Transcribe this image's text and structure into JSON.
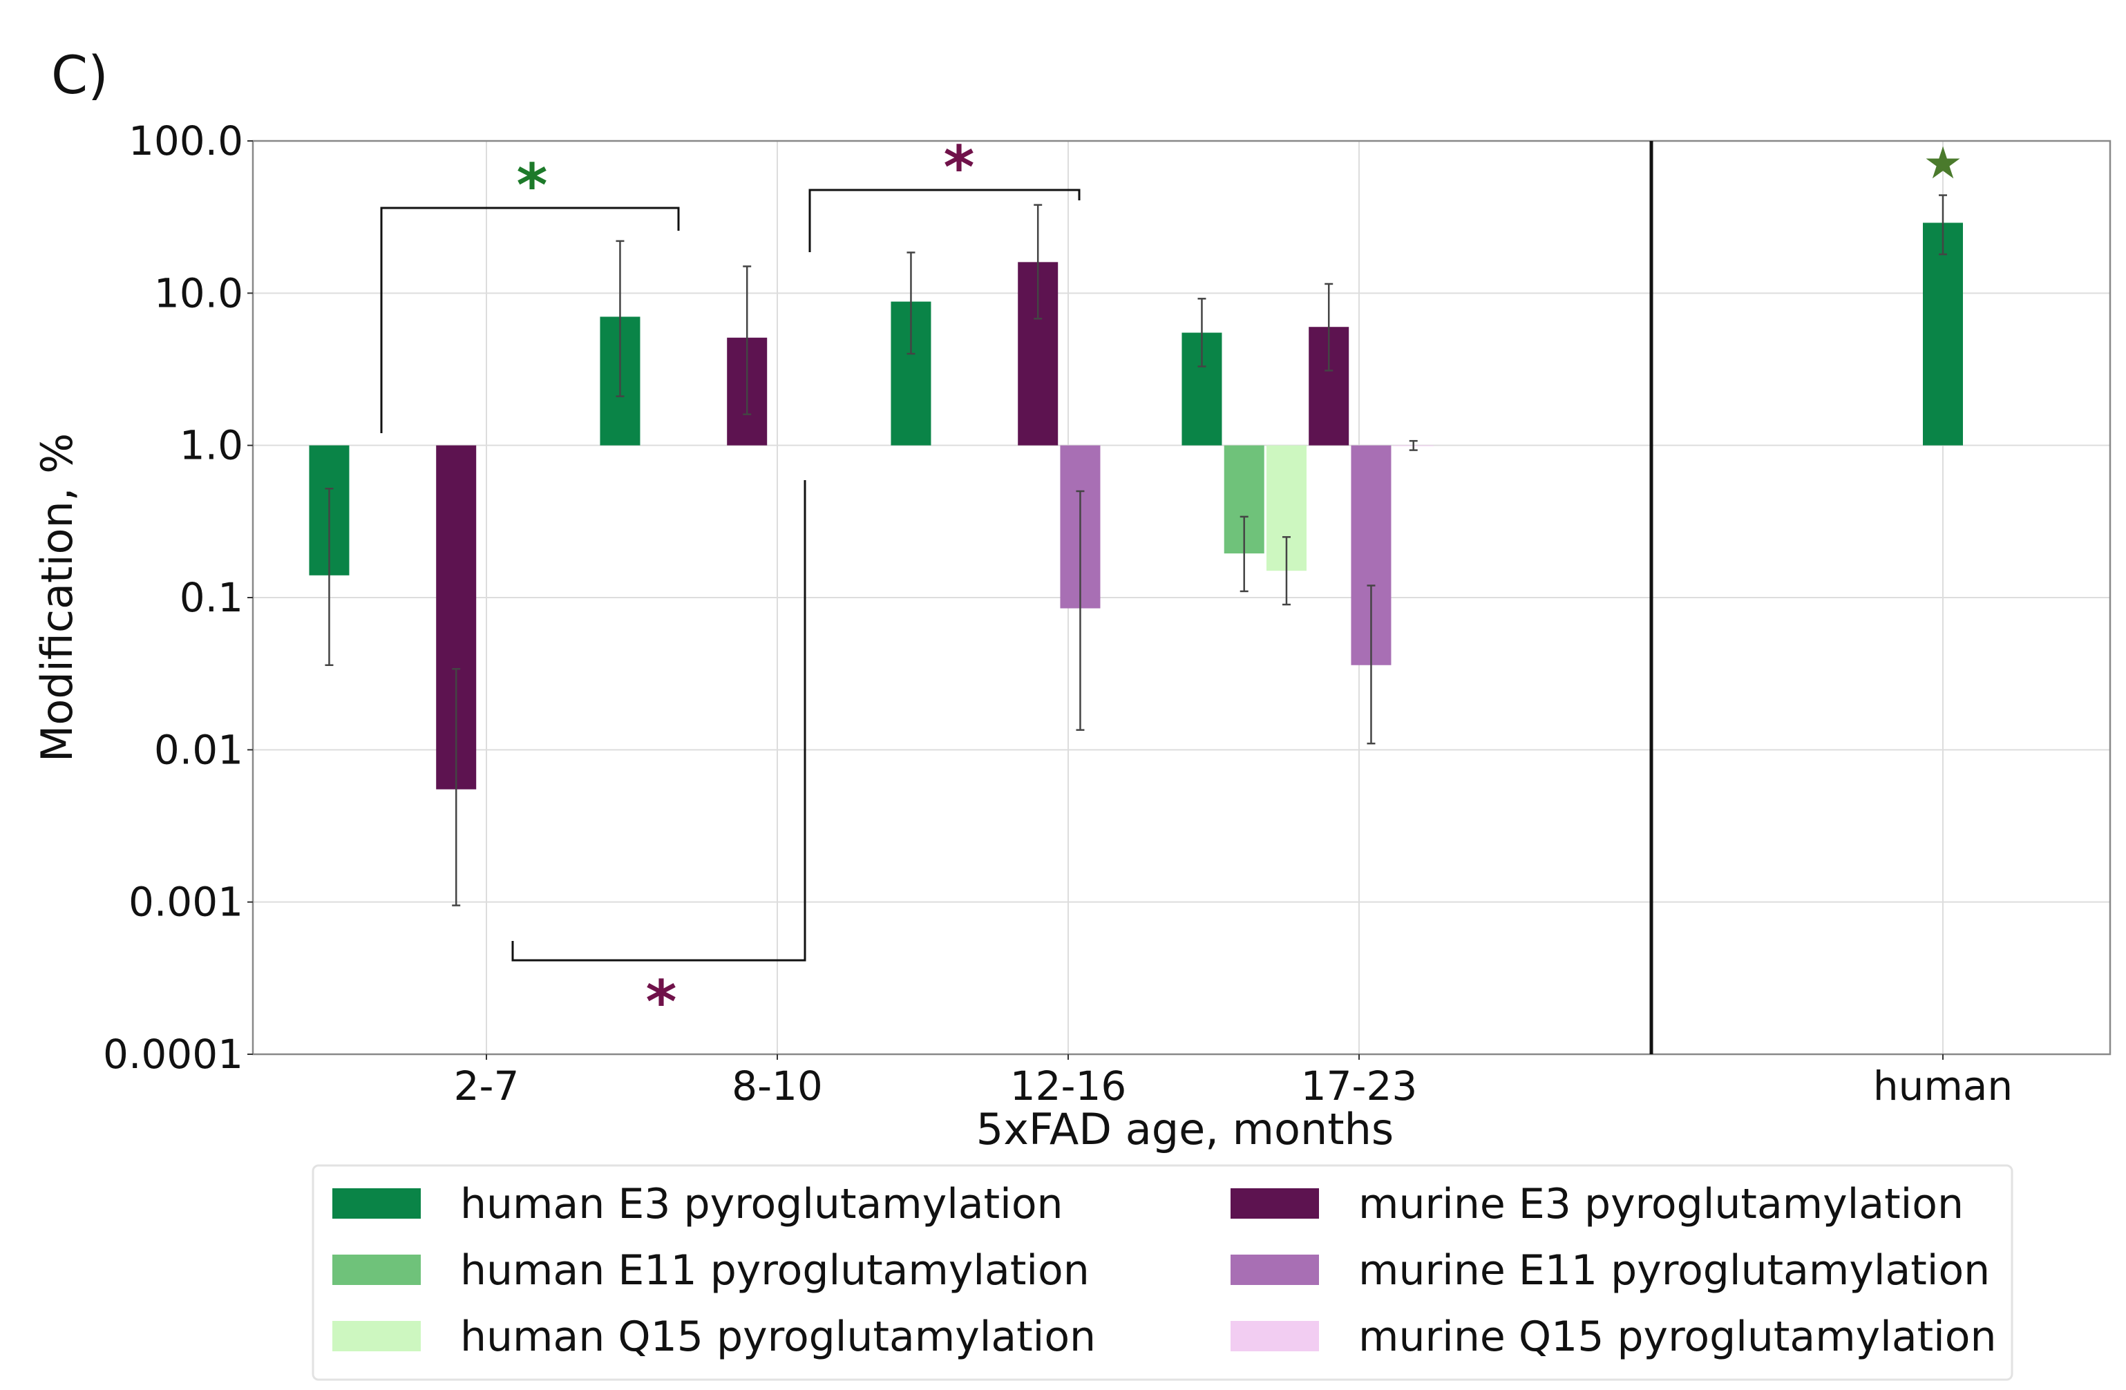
{
  "panel_label": "C)",
  "chart_data": {
    "type": "bar",
    "scale": "log",
    "baseline": 1.0,
    "ylabel": "Modification, %",
    "xlabel": "5xFAD age, months",
    "ylim": [
      0.0001,
      100.0
    ],
    "yticks": [
      {
        "value": 100.0,
        "label": "100.0"
      },
      {
        "value": 10.0,
        "label": "10.0"
      },
      {
        "value": 1.0,
        "label": "1.0"
      },
      {
        "value": 0.1,
        "label": "0.1"
      },
      {
        "value": 0.01,
        "label": "0.01"
      },
      {
        "value": 0.001,
        "label": "0.001"
      },
      {
        "value": 0.0001,
        "label": "0.0001"
      }
    ],
    "grid": true,
    "categories": [
      "2-7",
      "8-10",
      "12-16",
      "17-23"
    ],
    "extra_category": "human",
    "series": [
      {
        "name": "human E3 pyroglutamylation",
        "color": "#0a8447",
        "values": [
          0.14,
          7.0,
          8.8,
          5.5
        ],
        "err_low": [
          0.036,
          2.1,
          4.0,
          3.3
        ],
        "err_high": [
          0.52,
          22.0,
          18.5,
          9.2
        ],
        "human": 29.0,
        "human_err": [
          18.0,
          44.0
        ]
      },
      {
        "name": "human E11 pyroglutamylation",
        "color": "#6fc27a",
        "values": [
          null,
          null,
          null,
          0.195
        ],
        "err_low": [
          null,
          null,
          null,
          0.11
        ],
        "err_high": [
          null,
          null,
          null,
          0.34
        ]
      },
      {
        "name": "human Q15 pyroglutamylation",
        "color": "#cdf7c0",
        "values": [
          null,
          null,
          null,
          0.15
        ],
        "err_low": [
          null,
          null,
          null,
          0.09
        ],
        "err_high": [
          null,
          null,
          null,
          0.25
        ]
      },
      {
        "name": "murine E3 pyroglutamylation",
        "color": "#5d1350",
        "values": [
          0.0055,
          5.1,
          16.0,
          6.0
        ],
        "err_low": [
          0.00095,
          1.6,
          6.8,
          3.1
        ],
        "err_high": [
          0.034,
          15.0,
          38.0,
          11.5
        ]
      },
      {
        "name": "murine E11 pyroglutamylation",
        "color": "#a86fb4",
        "values": [
          null,
          null,
          0.085,
          0.036
        ],
        "err_low": [
          null,
          null,
          0.0135,
          0.011
        ],
        "err_high": [
          null,
          null,
          0.5,
          0.12
        ]
      },
      {
        "name": "murine Q15 pyroglutamylation",
        "color": "#f2cdf2",
        "values": [
          null,
          null,
          null,
          1.0
        ],
        "err_low": [
          null,
          null,
          null,
          0.93
        ],
        "err_high": [
          null,
          null,
          null,
          1.07
        ]
      }
    ],
    "significance": [
      {
        "label": "*",
        "color": "#1d7a2a",
        "between": [
          "2-7 human E3",
          "8-10 human E3"
        ]
      },
      {
        "label": "*",
        "color": "#70124a",
        "between": [
          "8-10 murine E3",
          "12-16 murine E3"
        ]
      },
      {
        "label": "*",
        "color": "#70124a",
        "between": [
          "2-7 murine E3",
          "8-10 murine E3"
        ]
      },
      {
        "label": "★",
        "color": "#4a7a2c",
        "between": [
          "human"
        ]
      }
    ]
  }
}
